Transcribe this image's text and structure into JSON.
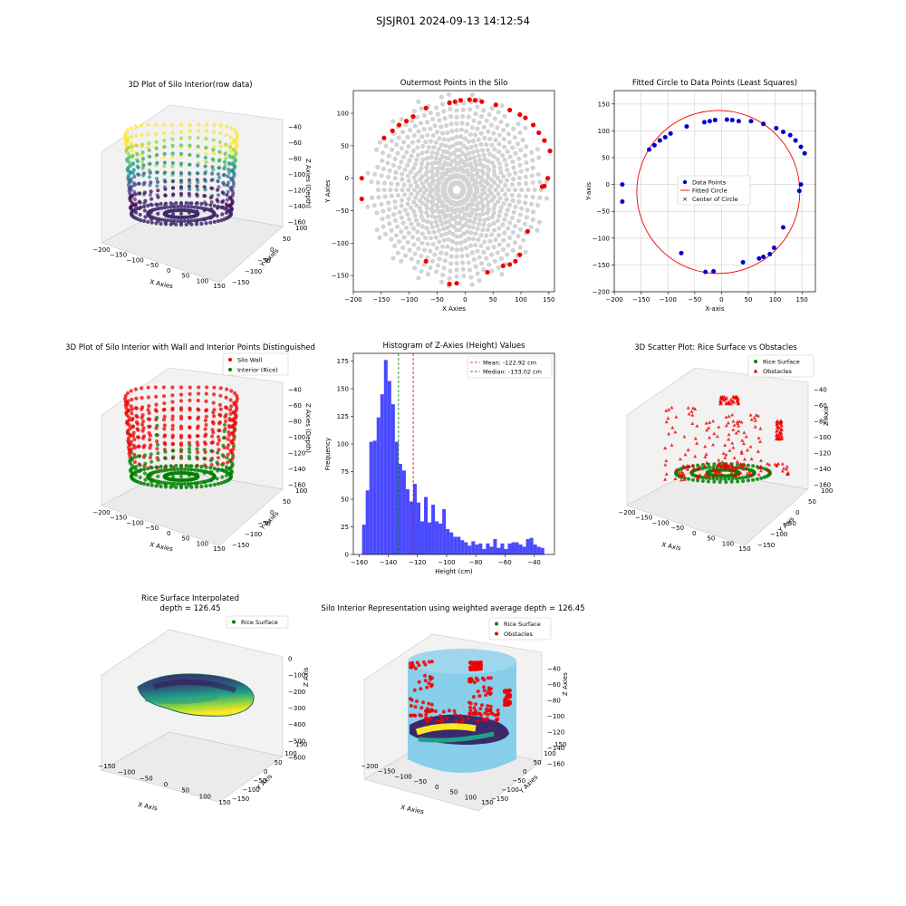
{
  "figure": {
    "title": "SJSJR01 2024-09-13 14:12:54"
  },
  "colors": {
    "blue": "#0000cc",
    "red": "#ee0000",
    "green": "#008000",
    "gray": "#d3d3d3",
    "hist": "#4a4aff",
    "cylinder": "#87ceeb"
  },
  "chart_data": [
    {
      "id": "p1",
      "type": "scatter3d",
      "title": "3D Plot of Silo Interior(row data)",
      "xlabel": "X Axies",
      "ylabel": "Y Axies",
      "zlabel": "Z Axies (Depth)",
      "xticks": [
        "−200",
        "−150",
        "−100",
        "−50",
        "0",
        "50",
        "100",
        "150"
      ],
      "yticks": [
        "100",
        "50",
        "0",
        "−50",
        "−100",
        "−150"
      ],
      "zticks": [
        "−40",
        "−60",
        "−80",
        "−100",
        "−120",
        "−140",
        "−160"
      ]
    },
    {
      "id": "p2",
      "type": "scatter",
      "title": "Outermost Points in the Silo",
      "xlabel": "X Axies",
      "ylabel": "Y Axies",
      "xlim": [
        -200,
        160
      ],
      "ylim": [
        -175,
        135
      ],
      "xticks": [
        "−200",
        "−150",
        "−100",
        "−50",
        "0",
        "50",
        "100",
        "150"
      ],
      "yticks": [
        "100",
        "50",
        "0",
        "−50",
        "−100",
        "−150"
      ],
      "outer_points": [
        [
          -185,
          0
        ],
        [
          -185,
          -32
        ],
        [
          -145,
          62
        ],
        [
          -130,
          73
        ],
        [
          -118,
          82
        ],
        [
          -105,
          88
        ],
        [
          -93,
          95
        ],
        [
          -70,
          108
        ],
        [
          -28,
          116
        ],
        [
          -18,
          118
        ],
        [
          -8,
          120
        ],
        [
          8,
          121
        ],
        [
          18,
          120
        ],
        [
          30,
          118
        ],
        [
          55,
          113
        ],
        [
          80,
          105
        ],
        [
          98,
          98
        ],
        [
          108,
          93
        ],
        [
          122,
          82
        ],
        [
          132,
          70
        ],
        [
          142,
          58
        ],
        [
          152,
          42
        ],
        [
          148,
          0
        ],
        [
          142,
          -12
        ],
        [
          138,
          -13
        ],
        [
          112,
          -82
        ],
        [
          98,
          -118
        ],
        [
          90,
          -128
        ],
        [
          80,
          -133
        ],
        [
          68,
          -135
        ],
        [
          40,
          -145
        ],
        [
          -15,
          -162
        ],
        [
          -28,
          -163
        ],
        [
          -70,
          -128
        ]
      ]
    },
    {
      "id": "p3",
      "type": "scatter",
      "title": "Fitted Circle to Data Points (Least Squares)",
      "xlabel": "X-axis",
      "ylabel": "Y-axis",
      "xlim": [
        -200,
        175
      ],
      "ylim": [
        -200,
        175
      ],
      "xticks": [
        "−200",
        "−150",
        "−100",
        "−50",
        "0",
        "50",
        "100",
        "150"
      ],
      "yticks": [
        "150",
        "100",
        "50",
        "0",
        "−50",
        "−100",
        "−150",
        "−200"
      ],
      "grid": true,
      "legend": [
        "Data Points",
        "Fitted Circle",
        "Center of Circle"
      ],
      "circle": {
        "cx": -6,
        "cy": -14,
        "r": 152
      },
      "points": [
        [
          -185,
          0
        ],
        [
          -185,
          -32
        ],
        [
          -135,
          65
        ],
        [
          -125,
          73
        ],
        [
          -115,
          82
        ],
        [
          -105,
          88
        ],
        [
          -95,
          95
        ],
        [
          -65,
          108
        ],
        [
          -32,
          116
        ],
        [
          -22,
          118
        ],
        [
          -12,
          120
        ],
        [
          10,
          121
        ],
        [
          20,
          120
        ],
        [
          32,
          118
        ],
        [
          55,
          118
        ],
        [
          78,
          113
        ],
        [
          102,
          105
        ],
        [
          115,
          98
        ],
        [
          128,
          92
        ],
        [
          138,
          82
        ],
        [
          148,
          70
        ],
        [
          155,
          58
        ],
        [
          148,
          0
        ],
        [
          145,
          -12
        ],
        [
          115,
          -80
        ],
        [
          98,
          -118
        ],
        [
          90,
          -130
        ],
        [
          78,
          -135
        ],
        [
          70,
          -138
        ],
        [
          40,
          -145
        ],
        [
          -15,
          -162
        ],
        [
          -30,
          -163
        ],
        [
          -75,
          -128
        ]
      ]
    },
    {
      "id": "p4",
      "type": "scatter3d",
      "title": "3D Plot of Silo Interior with Wall and Interior Points Distinguished",
      "xlabel": "X Axies",
      "ylabel": "Y Axies",
      "zlabel": "Z Axies (Depth)",
      "legend": [
        "Silo Wall",
        "Interior (Rice)"
      ],
      "xticks": [
        "−200",
        "−150",
        "−100",
        "−50",
        "0",
        "50",
        "100",
        "150"
      ],
      "yticks": [
        "100",
        "50",
        "0",
        "−50",
        "−100",
        "−150"
      ],
      "zticks": [
        "−40",
        "−60",
        "−80",
        "−100",
        "−120",
        "−140",
        "−160"
      ]
    },
    {
      "id": "p5",
      "type": "bar",
      "title": "Histogram of Z-Axies (Height) Values",
      "xlabel": "Height (cm)",
      "ylabel": "Frequency",
      "xlim": [
        -164,
        -26
      ],
      "ylim": [
        0,
        182
      ],
      "xticks": [
        "−160",
        "−140",
        "−120",
        "−100",
        "−80",
        "−60",
        "−40"
      ],
      "yticks": [
        "0",
        "25",
        "50",
        "75",
        "100",
        "125",
        "150",
        "175"
      ],
      "bin_start": -158,
      "bin_width": 2.5,
      "values": [
        27,
        58,
        102,
        103,
        124,
        145,
        176,
        157,
        136,
        102,
        82,
        76,
        59,
        48,
        64,
        47,
        30,
        52,
        29,
        45,
        30,
        28,
        41,
        23,
        20,
        16,
        16,
        13,
        11,
        8,
        12,
        9,
        10,
        5,
        10,
        7,
        14,
        6,
        10,
        5,
        10,
        11,
        11,
        9,
        7,
        14,
        15,
        9,
        7,
        6
      ],
      "mean": -122.92,
      "median": -133.02,
      "legend": [
        "Mean: -122.92 cm",
        "Median: -133.02 cm"
      ]
    },
    {
      "id": "p6",
      "type": "scatter3d",
      "title": "3D Scatter Plot: Rice Surface vs Obstacles",
      "xlabel": "X Axis",
      "ylabel": "Y Axis",
      "zlabel": "Z Axis",
      "legend": [
        "Rice Surface",
        "Obstacles"
      ],
      "xticks": [
        "−200",
        "−150",
        "−100",
        "−50",
        "0",
        "50",
        "100",
        "150"
      ],
      "yticks": [
        "100",
        "50",
        "0",
        "−50",
        "−100",
        "−150"
      ],
      "zticks": [
        "−40",
        "−60",
        "−80",
        "−100",
        "−120",
        "−140",
        "−160"
      ]
    },
    {
      "id": "p7",
      "type": "surface3d",
      "title": "Rice Surface Interpolated",
      "subtitle": "depth = 126.45",
      "xlabel": "X Axis",
      "ylabel": "Y Axis",
      "zlabel": "Z Axis",
      "legend": [
        "Rice Surface"
      ],
      "xticks": [
        "−150",
        "−100",
        "−50",
        "0",
        "50",
        "100",
        "150"
      ],
      "yticks": [
        "150",
        "100",
        "50",
        "0",
        "−50",
        "−100",
        "−150"
      ],
      "zticks": [
        "0",
        "−100",
        "−200",
        "−300",
        "−400",
        "−500",
        "−600"
      ]
    },
    {
      "id": "p8",
      "type": "surface3d",
      "title": "Silo Interior Representation using weighted average depth = 126.45",
      "xlabel": "X Axies",
      "ylabel": "Y Axies",
      "zlabel": "Z Axies",
      "legend": [
        "Rice Surface",
        "Obstacles"
      ],
      "xticks": [
        "−200",
        "−150",
        "−100",
        "−50",
        "0",
        "50",
        "100",
        "150"
      ],
      "yticks": [
        "150",
        "100",
        "50",
        "0",
        "−50",
        "−100",
        "−150"
      ],
      "zticks": [
        "−40",
        "−60",
        "−80",
        "−100",
        "−120",
        "−140",
        "−160"
      ]
    }
  ]
}
